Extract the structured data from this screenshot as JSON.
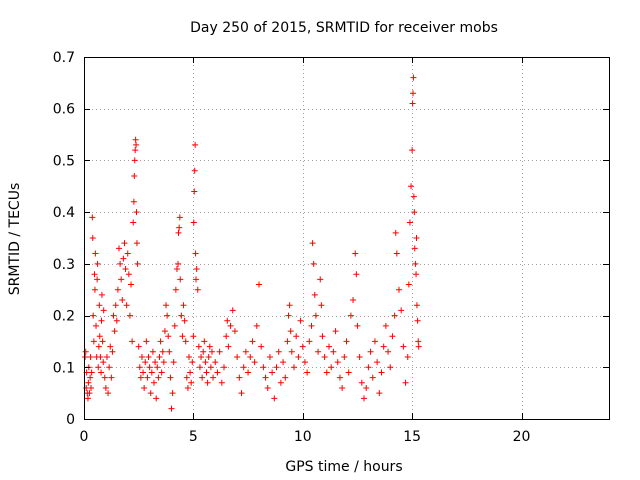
{
  "chart_data": {
    "type": "scatter",
    "title": "Day 250 of 2015, SRMTID for receiver mobs",
    "xlabel": "GPS time / hours",
    "ylabel": "SRMTID / TECUs",
    "xlim": [
      0,
      24
    ],
    "ylim": [
      0,
      0.7
    ],
    "xticks": [
      0,
      5,
      10,
      15,
      20
    ],
    "xtick_labels": [
      "0",
      "5",
      "10",
      "15",
      "20"
    ],
    "yticks": [
      0,
      0.1,
      0.2,
      0.3,
      0.4,
      0.5,
      0.6,
      0.7
    ],
    "ytick_labels": [
      "0",
      "0.1",
      "0.2",
      "0.3",
      "0.4",
      "0.5",
      "0.6",
      "0.7"
    ],
    "grid": true,
    "marker": "+",
    "color": "#ff0000",
    "series": [
      {
        "name": "SRMTID",
        "points": [
          [
            0.05,
            0.12
          ],
          [
            0.08,
            0.13
          ],
          [
            0.1,
            0.06
          ],
          [
            0.12,
            0.09
          ],
          [
            0.15,
            0.05
          ],
          [
            0.18,
            0.04
          ],
          [
            0.2,
            0.07
          ],
          [
            0.22,
            0.1
          ],
          [
            0.25,
            0.05
          ],
          [
            0.28,
            0.08
          ],
          [
            0.3,
            0.12
          ],
          [
            0.32,
            0.06
          ],
          [
            0.35,
            0.09
          ],
          [
            0.38,
            0.39
          ],
          [
            0.4,
            0.35
          ],
          [
            0.42,
            0.2
          ],
          [
            0.45,
            0.15
          ],
          [
            0.48,
            0.28
          ],
          [
            0.5,
            0.25
          ],
          [
            0.52,
            0.32
          ],
          [
            0.55,
            0.18
          ],
          [
            0.58,
            0.12
          ],
          [
            0.6,
            0.27
          ],
          [
            0.62,
            0.3
          ],
          [
            0.65,
            0.1
          ],
          [
            0.68,
            0.14
          ],
          [
            0.7,
            0.22
          ],
          [
            0.72,
            0.16
          ],
          [
            0.75,
            0.12
          ],
          [
            0.78,
            0.09
          ],
          [
            0.8,
            0.19
          ],
          [
            0.82,
            0.24
          ],
          [
            0.85,
            0.15
          ],
          [
            0.88,
            0.11
          ],
          [
            0.9,
            0.21
          ],
          [
            0.95,
            0.08
          ],
          [
            1.0,
            0.06
          ],
          [
            1.05,
            0.12
          ],
          [
            1.1,
            0.05
          ],
          [
            1.15,
            0.1
          ],
          [
            1.2,
            0.14
          ],
          [
            1.25,
            0.08
          ],
          [
            1.3,
            0.13
          ],
          [
            1.35,
            0.2
          ],
          [
            1.4,
            0.17
          ],
          [
            1.45,
            0.22
          ],
          [
            1.5,
            0.19
          ],
          [
            1.55,
            0.25
          ],
          [
            1.6,
            0.33
          ],
          [
            1.65,
            0.3
          ],
          [
            1.7,
            0.27
          ],
          [
            1.75,
            0.23
          ],
          [
            1.8,
            0.31
          ],
          [
            1.85,
            0.34
          ],
          [
            1.9,
            0.29
          ],
          [
            1.95,
            0.22
          ],
          [
            2.0,
            0.32
          ],
          [
            2.05,
            0.28
          ],
          [
            2.1,
            0.2
          ],
          [
            2.15,
            0.26
          ],
          [
            2.2,
            0.15
          ],
          [
            2.25,
            0.38
          ],
          [
            2.28,
            0.42
          ],
          [
            2.3,
            0.47
          ],
          [
            2.32,
            0.5
          ],
          [
            2.34,
            0.52
          ],
          [
            2.36,
            0.54
          ],
          [
            2.38,
            0.53
          ],
          [
            2.4,
            0.4
          ],
          [
            2.42,
            0.34
          ],
          [
            2.45,
            0.3
          ],
          [
            2.5,
            0.14
          ],
          [
            2.55,
            0.1
          ],
          [
            2.6,
            0.08
          ],
          [
            2.65,
            0.12
          ],
          [
            2.7,
            0.09
          ],
          [
            2.75,
            0.06
          ],
          [
            2.8,
            0.11
          ],
          [
            2.85,
            0.15
          ],
          [
            2.9,
            0.08
          ],
          [
            2.95,
            0.12
          ],
          [
            3.0,
            0.1
          ],
          [
            3.05,
            0.05
          ],
          [
            3.1,
            0.09
          ],
          [
            3.15,
            0.13
          ],
          [
            3.2,
            0.07
          ],
          [
            3.25,
            0.11
          ],
          [
            3.3,
            0.04
          ],
          [
            3.35,
            0.1
          ],
          [
            3.4,
            0.08
          ],
          [
            3.45,
            0.12
          ],
          [
            3.5,
            0.15
          ],
          [
            3.55,
            0.09
          ],
          [
            3.6,
            0.13
          ],
          [
            3.65,
            0.11
          ],
          [
            3.7,
            0.17
          ],
          [
            3.75,
            0.22
          ],
          [
            3.8,
            0.2
          ],
          [
            3.85,
            0.16
          ],
          [
            3.9,
            0.13
          ],
          [
            3.95,
            0.08
          ],
          [
            4.0,
            0.02
          ],
          [
            4.05,
            0.05
          ],
          [
            4.1,
            0.11
          ],
          [
            4.15,
            0.18
          ],
          [
            4.2,
            0.25
          ],
          [
            4.25,
            0.29
          ],
          [
            4.3,
            0.3
          ],
          [
            4.32,
            0.36
          ],
          [
            4.35,
            0.37
          ],
          [
            4.38,
            0.39
          ],
          [
            4.4,
            0.27
          ],
          [
            4.45,
            0.2
          ],
          [
            4.5,
            0.16
          ],
          [
            4.55,
            0.22
          ],
          [
            4.6,
            0.19
          ],
          [
            4.65,
            0.15
          ],
          [
            4.7,
            0.08
          ],
          [
            4.75,
            0.06
          ],
          [
            4.8,
            0.12
          ],
          [
            4.85,
            0.09
          ],
          [
            4.9,
            0.07
          ],
          [
            4.95,
            0.11
          ],
          [
            5.0,
            0.16
          ],
          [
            5.02,
            0.38
          ],
          [
            5.04,
            0.44
          ],
          [
            5.06,
            0.48
          ],
          [
            5.08,
            0.53
          ],
          [
            5.1,
            0.32
          ],
          [
            5.12,
            0.27
          ],
          [
            5.15,
            0.29
          ],
          [
            5.2,
            0.25
          ],
          [
            5.25,
            0.14
          ],
          [
            5.3,
            0.1
          ],
          [
            5.35,
            0.12
          ],
          [
            5.4,
            0.08
          ],
          [
            5.45,
            0.13
          ],
          [
            5.5,
            0.15
          ],
          [
            5.55,
            0.11
          ],
          [
            5.6,
            0.09
          ],
          [
            5.65,
            0.07
          ],
          [
            5.7,
            0.12
          ],
          [
            5.75,
            0.14
          ],
          [
            5.8,
            0.1
          ],
          [
            5.85,
            0.13
          ],
          [
            5.9,
            0.08
          ],
          [
            6.0,
            0.11
          ],
          [
            6.1,
            0.09
          ],
          [
            6.2,
            0.13
          ],
          [
            6.3,
            0.07
          ],
          [
            6.4,
            0.1
          ],
          [
            6.5,
            0.16
          ],
          [
            6.55,
            0.19
          ],
          [
            6.6,
            0.14
          ],
          [
            6.7,
            0.18
          ],
          [
            6.8,
            0.21
          ],
          [
            6.9,
            0.17
          ],
          [
            7.0,
            0.12
          ],
          [
            7.1,
            0.08
          ],
          [
            7.2,
            0.05
          ],
          [
            7.3,
            0.1
          ],
          [
            7.4,
            0.13
          ],
          [
            7.5,
            0.09
          ],
          [
            7.6,
            0.12
          ],
          [
            7.7,
            0.15
          ],
          [
            7.8,
            0.11
          ],
          [
            7.9,
            0.18
          ],
          [
            8.0,
            0.26
          ],
          [
            8.1,
            0.14
          ],
          [
            8.2,
            0.1
          ],
          [
            8.3,
            0.08
          ],
          [
            8.4,
            0.06
          ],
          [
            8.5,
            0.12
          ],
          [
            8.6,
            0.09
          ],
          [
            8.7,
            0.04
          ],
          [
            8.8,
            0.1
          ],
          [
            8.9,
            0.13
          ],
          [
            9.0,
            0.07
          ],
          [
            9.1,
            0.11
          ],
          [
            9.2,
            0.08
          ],
          [
            9.3,
            0.15
          ],
          [
            9.35,
            0.2
          ],
          [
            9.4,
            0.22
          ],
          [
            9.45,
            0.17
          ],
          [
            9.5,
            0.13
          ],
          [
            9.6,
            0.1
          ],
          [
            9.7,
            0.16
          ],
          [
            9.8,
            0.12
          ],
          [
            9.9,
            0.19
          ],
          [
            10.0,
            0.14
          ],
          [
            10.1,
            0.11
          ],
          [
            10.2,
            0.09
          ],
          [
            10.3,
            0.15
          ],
          [
            10.4,
            0.18
          ],
          [
            10.45,
            0.34
          ],
          [
            10.5,
            0.3
          ],
          [
            10.55,
            0.24
          ],
          [
            10.6,
            0.2
          ],
          [
            10.7,
            0.13
          ],
          [
            10.8,
            0.27
          ],
          [
            10.85,
            0.22
          ],
          [
            10.9,
            0.16
          ],
          [
            11.0,
            0.12
          ],
          [
            11.1,
            0.09
          ],
          [
            11.2,
            0.14
          ],
          [
            11.3,
            0.1
          ],
          [
            11.4,
            0.13
          ],
          [
            11.5,
            0.17
          ],
          [
            11.6,
            0.11
          ],
          [
            11.7,
            0.08
          ],
          [
            11.8,
            0.06
          ],
          [
            11.9,
            0.12
          ],
          [
            12.0,
            0.15
          ],
          [
            12.1,
            0.09
          ],
          [
            12.2,
            0.2
          ],
          [
            12.3,
            0.23
          ],
          [
            12.4,
            0.32
          ],
          [
            12.45,
            0.28
          ],
          [
            12.5,
            0.18
          ],
          [
            12.6,
            0.12
          ],
          [
            12.7,
            0.07
          ],
          [
            12.8,
            0.04
          ],
          [
            12.9,
            0.06
          ],
          [
            13.0,
            0.1
          ],
          [
            13.1,
            0.13
          ],
          [
            13.2,
            0.08
          ],
          [
            13.3,
            0.15
          ],
          [
            13.4,
            0.11
          ],
          [
            13.5,
            0.05
          ],
          [
            13.6,
            0.09
          ],
          [
            13.7,
            0.14
          ],
          [
            13.8,
            0.18
          ],
          [
            13.9,
            0.13
          ],
          [
            14.0,
            0.1
          ],
          [
            14.1,
            0.16
          ],
          [
            14.2,
            0.2
          ],
          [
            14.25,
            0.36
          ],
          [
            14.3,
            0.32
          ],
          [
            14.4,
            0.25
          ],
          [
            14.5,
            0.21
          ],
          [
            14.6,
            0.14
          ],
          [
            14.7,
            0.07
          ],
          [
            14.8,
            0.12
          ],
          [
            14.85,
            0.26
          ],
          [
            14.9,
            0.38
          ],
          [
            14.95,
            0.45
          ],
          [
            15.0,
            0.52
          ],
          [
            15.02,
            0.61
          ],
          [
            15.04,
            0.63
          ],
          [
            15.06,
            0.66
          ],
          [
            15.08,
            0.43
          ],
          [
            15.1,
            0.4
          ],
          [
            15.12,
            0.33
          ],
          [
            15.15,
            0.3
          ],
          [
            15.18,
            0.28
          ],
          [
            15.2,
            0.35
          ],
          [
            15.22,
            0.22
          ],
          [
            15.25,
            0.19
          ],
          [
            15.28,
            0.15
          ],
          [
            15.3,
            0.14
          ]
        ]
      }
    ]
  }
}
